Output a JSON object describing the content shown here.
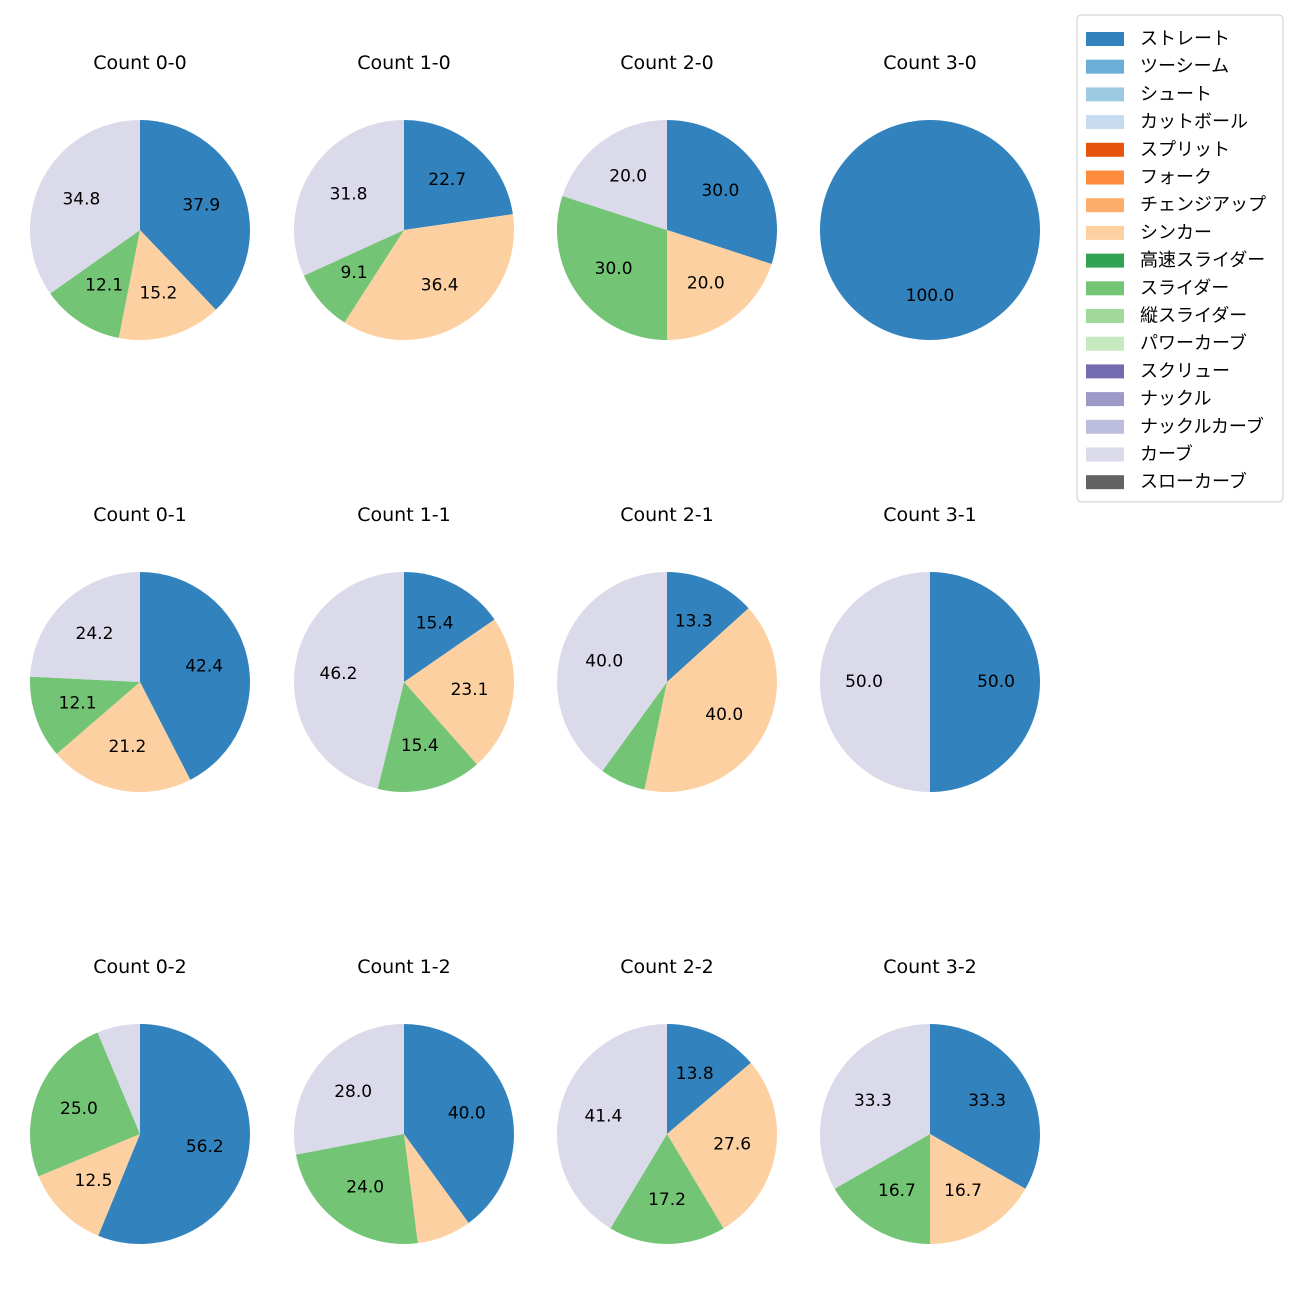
{
  "chart_data": {
    "type": "pie",
    "legend": {
      "placement": "upper-right",
      "entries": [
        {
          "key": "straight",
          "label": "ストレート",
          "color": "#3182bd"
        },
        {
          "key": "twoseam",
          "label": "ツーシーム",
          "color": "#6baed6"
        },
        {
          "key": "shoot",
          "label": "シュート",
          "color": "#9ecae1"
        },
        {
          "key": "cutball",
          "label": "カットボール",
          "color": "#c6dbef"
        },
        {
          "key": "split",
          "label": "スプリット",
          "color": "#e6550d"
        },
        {
          "key": "fork",
          "label": "フォーク",
          "color": "#fd8d3c"
        },
        {
          "key": "changeup",
          "label": "チェンジアップ",
          "color": "#fdae6b"
        },
        {
          "key": "sinker",
          "label": "シンカー",
          "color": "#fdd0a2"
        },
        {
          "key": "fast_slider",
          "label": "高速スライダー",
          "color": "#31a354"
        },
        {
          "key": "slider",
          "label": "スライダー",
          "color": "#74c476"
        },
        {
          "key": "vertical_slider",
          "label": "縦スライダー",
          "color": "#a1d99b"
        },
        {
          "key": "power_curve",
          "label": "パワーカーブ",
          "color": "#c7e9c0"
        },
        {
          "key": "screw",
          "label": "スクリュー",
          "color": "#756bb1"
        },
        {
          "key": "knuckle",
          "label": "ナックル",
          "color": "#9e9ac8"
        },
        {
          "key": "knuckle_curve",
          "label": "ナックルカーブ",
          "color": "#bcbddc"
        },
        {
          "key": "curve",
          "label": "カーブ",
          "color": "#dadaeb"
        },
        {
          "key": "slow_curve",
          "label": "スローカーブ",
          "color": "#636363"
        }
      ]
    },
    "charts": [
      {
        "title": "Count 0-0",
        "slices": [
          {
            "key": "straight",
            "value": 37.9,
            "label": "37.9"
          },
          {
            "key": "sinker",
            "value": 15.2,
            "label": "15.2"
          },
          {
            "key": "slider",
            "value": 12.1,
            "label": "12.1"
          },
          {
            "key": "curve",
            "value": 34.8,
            "label": "34.8"
          }
        ]
      },
      {
        "title": "Count 1-0",
        "slices": [
          {
            "key": "straight",
            "value": 22.7,
            "label": "22.7"
          },
          {
            "key": "sinker",
            "value": 36.4,
            "label": "36.4"
          },
          {
            "key": "slider",
            "value": 9.1,
            "label": "9.1"
          },
          {
            "key": "curve",
            "value": 31.8,
            "label": "31.8"
          }
        ]
      },
      {
        "title": "Count 2-0",
        "slices": [
          {
            "key": "straight",
            "value": 30.0,
            "label": "30.0"
          },
          {
            "key": "sinker",
            "value": 20.0,
            "label": "20.0"
          },
          {
            "key": "slider",
            "value": 30.0,
            "label": "30.0"
          },
          {
            "key": "curve",
            "value": 20.0,
            "label": "20.0"
          }
        ]
      },
      {
        "title": "Count 3-0",
        "slices": [
          {
            "key": "straight",
            "value": 100.0,
            "label": "100.0"
          }
        ]
      },
      {
        "title": "Count 0-1",
        "slices": [
          {
            "key": "straight",
            "value": 42.4,
            "label": "42.4"
          },
          {
            "key": "sinker",
            "value": 21.2,
            "label": "21.2"
          },
          {
            "key": "slider",
            "value": 12.1,
            "label": "12.1"
          },
          {
            "key": "curve",
            "value": 24.2,
            "label": "24.2"
          }
        ]
      },
      {
        "title": "Count 1-1",
        "slices": [
          {
            "key": "straight",
            "value": 15.4,
            "label": "15.4"
          },
          {
            "key": "sinker",
            "value": 23.1,
            "label": "23.1"
          },
          {
            "key": "slider",
            "value": 15.4,
            "label": "15.4"
          },
          {
            "key": "curve",
            "value": 46.2,
            "label": "46.2"
          }
        ]
      },
      {
        "title": "Count 2-1",
        "slices": [
          {
            "key": "straight",
            "value": 13.3,
            "label": "13.3"
          },
          {
            "key": "sinker",
            "value": 40.0,
            "label": "40.0"
          },
          {
            "key": "slider",
            "value": 6.7,
            "label": ""
          },
          {
            "key": "curve",
            "value": 40.0,
            "label": "40.0"
          }
        ]
      },
      {
        "title": "Count 3-1",
        "slices": [
          {
            "key": "straight",
            "value": 50.0,
            "label": "50.0"
          },
          {
            "key": "curve",
            "value": 50.0,
            "label": "50.0"
          }
        ]
      },
      {
        "title": "Count 0-2",
        "slices": [
          {
            "key": "straight",
            "value": 56.2,
            "label": "56.2"
          },
          {
            "key": "sinker",
            "value": 12.5,
            "label": "12.5"
          },
          {
            "key": "slider",
            "value": 25.0,
            "label": "25.0"
          },
          {
            "key": "curve",
            "value": 6.3,
            "label": ""
          }
        ]
      },
      {
        "title": "Count 1-2",
        "slices": [
          {
            "key": "straight",
            "value": 40.0,
            "label": "40.0"
          },
          {
            "key": "sinker",
            "value": 8.0,
            "label": ""
          },
          {
            "key": "slider",
            "value": 24.0,
            "label": "24.0"
          },
          {
            "key": "curve",
            "value": 28.0,
            "label": "28.0"
          }
        ]
      },
      {
        "title": "Count 2-2",
        "slices": [
          {
            "key": "straight",
            "value": 13.8,
            "label": "13.8"
          },
          {
            "key": "sinker",
            "value": 27.6,
            "label": "27.6"
          },
          {
            "key": "slider",
            "value": 17.2,
            "label": "17.2"
          },
          {
            "key": "curve",
            "value": 41.4,
            "label": "41.4"
          }
        ]
      },
      {
        "title": "Count 3-2",
        "slices": [
          {
            "key": "straight",
            "value": 33.3,
            "label": "33.3"
          },
          {
            "key": "sinker",
            "value": 16.7,
            "label": "16.7"
          },
          {
            "key": "slider",
            "value": 16.7,
            "label": "16.7"
          },
          {
            "key": "curve",
            "value": 33.3,
            "label": "33.3"
          }
        ]
      }
    ]
  }
}
